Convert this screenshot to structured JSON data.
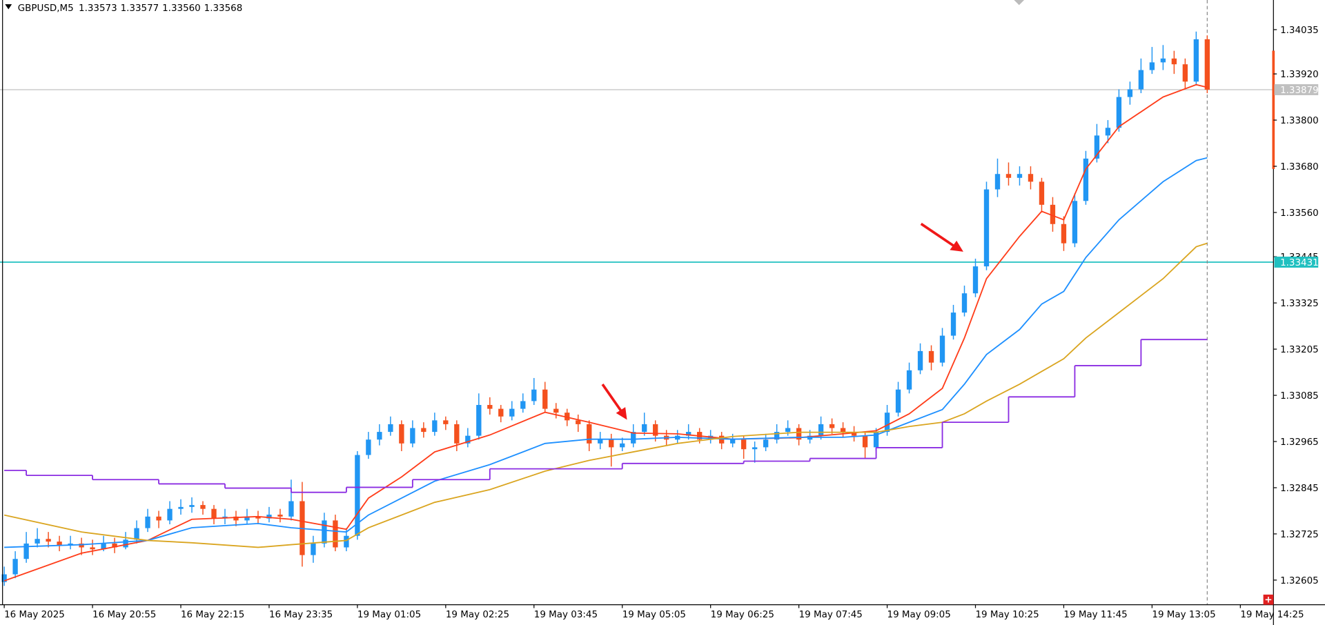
{
  "chart_data": {
    "type": "candlestick",
    "title": "GBPUSD,M5",
    "header_values": [
      "1.33573",
      "1.33577",
      "1.33560",
      "1.33568"
    ],
    "colors": {
      "up": "#2196f3",
      "down": "#f4511e"
    },
    "candles": [
      [
        1.326,
        1.3264,
        1.3259,
        1.3262
      ],
      [
        1.3262,
        1.3268,
        1.3261,
        1.3266
      ],
      [
        1.3266,
        1.3273,
        1.3265,
        1.327
      ],
      [
        1.327,
        1.3274,
        1.3269,
        1.32712
      ],
      [
        1.32712,
        1.3273,
        1.3269,
        1.32705
      ],
      [
        1.32705,
        1.3272,
        1.3268,
        1.32695
      ],
      [
        1.32695,
        1.3272,
        1.32685,
        1.327
      ],
      [
        1.327,
        1.32715,
        1.3267,
        1.3269
      ],
      [
        1.3269,
        1.3271,
        1.3267,
        1.32685
      ],
      [
        1.32685,
        1.3272,
        1.3268,
        1.327
      ],
      [
        1.327,
        1.32715,
        1.32675,
        1.3269
      ],
      [
        1.3269,
        1.3273,
        1.32685,
        1.3271
      ],
      [
        1.3271,
        1.3276,
        1.327,
        1.3274
      ],
      [
        1.3274,
        1.3279,
        1.3273,
        1.3277
      ],
      [
        1.3277,
        1.32785,
        1.3274,
        1.3276
      ],
      [
        1.3276,
        1.3281,
        1.3275,
        1.3279
      ],
      [
        1.3279,
        1.32815,
        1.32775,
        1.32795
      ],
      [
        1.32795,
        1.3282,
        1.3278,
        1.328
      ],
      [
        1.328,
        1.3281,
        1.32775,
        1.3279
      ],
      [
        1.3279,
        1.328,
        1.3275,
        1.32765
      ],
      [
        1.32765,
        1.3279,
        1.3275,
        1.3277
      ],
      [
        1.3277,
        1.32785,
        1.32745,
        1.3276
      ],
      [
        1.3276,
        1.3279,
        1.3275,
        1.3277
      ],
      [
        1.3277,
        1.32785,
        1.3275,
        1.32765
      ],
      [
        1.32765,
        1.32795,
        1.32755,
        1.32775
      ],
      [
        1.32775,
        1.3279,
        1.32755,
        1.3277
      ],
      [
        1.3277,
        1.32866,
        1.3276,
        1.3281
      ],
      [
        1.3281,
        1.3286,
        1.3264,
        1.3267
      ],
      [
        1.3267,
        1.3272,
        1.3265,
        1.327
      ],
      [
        1.327,
        1.3278,
        1.3269,
        1.3276
      ],
      [
        1.3276,
        1.32775,
        1.3268,
        1.3269
      ],
      [
        1.3269,
        1.3274,
        1.3268,
        1.3272
      ],
      [
        1.3272,
        1.3294,
        1.3271,
        1.3293
      ],
      [
        1.3293,
        1.3299,
        1.3292,
        1.3297
      ],
      [
        1.3297,
        1.3301,
        1.32955,
        1.3299
      ],
      [
        1.3299,
        1.3303,
        1.3298,
        1.3301
      ],
      [
        1.3301,
        1.3302,
        1.3294,
        1.3296
      ],
      [
        1.3296,
        1.3302,
        1.3295,
        1.33
      ],
      [
        1.33,
        1.33015,
        1.32975,
        1.3299
      ],
      [
        1.3299,
        1.3304,
        1.3298,
        1.3302
      ],
      [
        1.3302,
        1.3303,
        1.32995,
        1.3301
      ],
      [
        1.3301,
        1.3302,
        1.3294,
        1.3296
      ],
      [
        1.3296,
        1.33,
        1.3295,
        1.3298
      ],
      [
        1.3298,
        1.3309,
        1.3297,
        1.3306
      ],
      [
        1.3306,
        1.3308,
        1.33035,
        1.3305
      ],
      [
        1.3305,
        1.3306,
        1.33015,
        1.3303
      ],
      [
        1.3303,
        1.3307,
        1.3302,
        1.3305
      ],
      [
        1.3305,
        1.3309,
        1.3304,
        1.3307
      ],
      [
        1.3307,
        1.3313,
        1.3306,
        1.331
      ],
      [
        1.331,
        1.3312,
        1.3304,
        1.3305
      ],
      [
        1.3305,
        1.33065,
        1.33025,
        1.3304
      ],
      [
        1.3304,
        1.3305,
        1.33005,
        1.3302
      ],
      [
        1.3302,
        1.33035,
        1.3299,
        1.3301
      ],
      [
        1.3301,
        1.3302,
        1.3294,
        1.3296
      ],
      [
        1.3296,
        1.3299,
        1.32945,
        1.3297
      ],
      [
        1.3297,
        1.32985,
        1.329,
        1.3295
      ],
      [
        1.3295,
        1.32975,
        1.3294,
        1.3296
      ],
      [
        1.3296,
        1.3301,
        1.3295,
        1.3299
      ],
      [
        1.3299,
        1.3304,
        1.3298,
        1.3301
      ],
      [
        1.3301,
        1.3302,
        1.32965,
        1.3298
      ],
      [
        1.3298,
        1.32995,
        1.32955,
        1.3297
      ],
      [
        1.3297,
        1.32995,
        1.3296,
        1.3298
      ],
      [
        1.3298,
        1.3301,
        1.3297,
        1.3299
      ],
      [
        1.3299,
        1.33,
        1.3296,
        1.3297
      ],
      [
        1.3297,
        1.32995,
        1.3296,
        1.3298
      ],
      [
        1.3298,
        1.3299,
        1.32945,
        1.3296
      ],
      [
        1.3296,
        1.32985,
        1.3295,
        1.3297
      ],
      [
        1.3297,
        1.3298,
        1.3292,
        1.32945
      ],
      [
        1.32945,
        1.32965,
        1.3291,
        1.3295
      ],
      [
        1.3295,
        1.32985,
        1.3294,
        1.3297
      ],
      [
        1.3297,
        1.3301,
        1.3296,
        1.3299
      ],
      [
        1.3299,
        1.3302,
        1.3298,
        1.33
      ],
      [
        1.33,
        1.3301,
        1.32955,
        1.3297
      ],
      [
        1.3297,
        1.32995,
        1.3296,
        1.3298
      ],
      [
        1.3298,
        1.3303,
        1.3297,
        1.3301
      ],
      [
        1.3301,
        1.33025,
        1.32985,
        1.33
      ],
      [
        1.33,
        1.33015,
        1.32975,
        1.3299
      ],
      [
        1.3299,
        1.33005,
        1.32965,
        1.3298
      ],
      [
        1.3298,
        1.3299,
        1.3292,
        1.3295
      ],
      [
        1.3295,
        1.33,
        1.3294,
        1.3299
      ],
      [
        1.3299,
        1.3306,
        1.3298,
        1.3304
      ],
      [
        1.3304,
        1.3312,
        1.3303,
        1.331
      ],
      [
        1.331,
        1.3317,
        1.3309,
        1.3315
      ],
      [
        1.3315,
        1.3322,
        1.3314,
        1.332
      ],
      [
        1.332,
        1.33215,
        1.3315,
        1.3317
      ],
      [
        1.3317,
        1.3326,
        1.3316,
        1.3324
      ],
      [
        1.3324,
        1.3332,
        1.3323,
        1.333
      ],
      [
        1.333,
        1.3337,
        1.3329,
        1.3335
      ],
      [
        1.3335,
        1.3344,
        1.3334,
        1.3342
      ],
      [
        1.3342,
        1.3364,
        1.3341,
        1.3362
      ],
      [
        1.3362,
        1.337,
        1.336,
        1.3366
      ],
      [
        1.3366,
        1.3369,
        1.3363,
        1.3365
      ],
      [
        1.3365,
        1.3368,
        1.3363,
        1.3366
      ],
      [
        1.3366,
        1.3368,
        1.3362,
        1.3364
      ],
      [
        1.3364,
        1.3365,
        1.3356,
        1.3358
      ],
      [
        1.3358,
        1.336,
        1.3351,
        1.3353
      ],
      [
        1.3353,
        1.3355,
        1.3346,
        1.3348
      ],
      [
        1.3348,
        1.3361,
        1.3347,
        1.3359
      ],
      [
        1.3359,
        1.3372,
        1.3358,
        1.337
      ],
      [
        1.337,
        1.3379,
        1.3369,
        1.3376
      ],
      [
        1.3376,
        1.338,
        1.3374,
        1.3378
      ],
      [
        1.3378,
        1.3388,
        1.3377,
        1.3386
      ],
      [
        1.3386,
        1.339,
        1.3384,
        1.3388
      ],
      [
        1.3388,
        1.3396,
        1.3387,
        1.3393
      ],
      [
        1.3393,
        1.3399,
        1.3392,
        1.3395
      ],
      [
        1.3395,
        1.33995,
        1.3393,
        1.3396
      ],
      [
        1.3396,
        1.3398,
        1.3392,
        1.33945
      ],
      [
        1.33945,
        1.3396,
        1.3388,
        1.339
      ],
      [
        1.339,
        1.3403,
        1.3389,
        1.3401
      ],
      [
        1.3401,
        1.3402,
        1.3387,
        1.33879
      ]
    ],
    "overlays": [
      {
        "color": "#ff3d1a",
        "step": false,
        "x": [
          0,
          7,
          13,
          17,
          23,
          26,
          31,
          33,
          36,
          39,
          44,
          49,
          53,
          57,
          61,
          66,
          72,
          76,
          79,
          82,
          85,
          87,
          89,
          92,
          94,
          96,
          98,
          101,
          105,
          108,
          109
        ],
        "values": [
          1.32603,
          1.32675,
          1.32708,
          1.32763,
          1.3277,
          1.32763,
          1.32737,
          1.32818,
          1.32873,
          1.32938,
          1.32982,
          1.33041,
          1.33015,
          1.32987,
          1.32985,
          1.32971,
          1.32975,
          1.32985,
          1.32993,
          1.33037,
          1.33103,
          1.33234,
          1.33388,
          1.33498,
          1.33563,
          1.33541,
          1.33673,
          1.33783,
          1.3386,
          1.33892,
          1.33885
        ]
      },
      {
        "color": "#1e90ff",
        "step": false,
        "x": [
          0,
          7,
          13,
          17,
          23,
          26,
          31,
          33,
          36,
          39,
          44,
          49,
          53,
          57,
          61,
          66,
          72,
          76,
          79,
          82,
          85,
          87,
          89,
          92,
          94,
          96,
          98,
          101,
          105,
          108,
          109
        ],
        "values": [
          1.3269,
          1.32697,
          1.32708,
          1.32741,
          1.32752,
          1.32741,
          1.3273,
          1.32774,
          1.32818,
          1.32862,
          1.32905,
          1.3296,
          1.32971,
          1.32971,
          1.32976,
          1.32971,
          1.32976,
          1.32976,
          1.32982,
          1.33015,
          1.33048,
          1.33114,
          1.33191,
          1.33256,
          1.33322,
          1.33355,
          1.33443,
          1.33541,
          1.3364,
          1.33695,
          1.33702
        ]
      },
      {
        "color": "#daa520",
        "step": false,
        "x": [
          0,
          7,
          13,
          17,
          23,
          26,
          31,
          33,
          36,
          39,
          44,
          49,
          53,
          57,
          61,
          66,
          72,
          76,
          79,
          82,
          85,
          87,
          89,
          92,
          94,
          96,
          98,
          101,
          105,
          108,
          109
        ],
        "values": [
          1.32774,
          1.3273,
          1.32708,
          1.32702,
          1.3269,
          1.32697,
          1.32708,
          1.32741,
          1.32774,
          1.32807,
          1.3284,
          1.32888,
          1.32916,
          1.32938,
          1.3296,
          1.32978,
          1.32989,
          1.32989,
          1.32989,
          1.33004,
          1.33015,
          1.33037,
          1.3307,
          1.33114,
          1.33147,
          1.3318,
          1.33234,
          1.333,
          1.33388,
          1.33471,
          1.3348
        ]
      },
      {
        "color": "#8a2be2",
        "step": true,
        "x": [
          0,
          2,
          8,
          14,
          20,
          26,
          31,
          37,
          44,
          56,
          67,
          73,
          79,
          85,
          91,
          97,
          103
        ],
        "values": [
          1.3289,
          1.32877,
          1.32866,
          1.32855,
          1.32844,
          1.32833,
          1.32846,
          1.32866,
          1.32894,
          1.32908,
          1.32914,
          1.32921,
          1.32949,
          1.33015,
          1.33081,
          1.33162,
          1.3323
        ]
      }
    ],
    "hlines": [
      {
        "value": 1.33879,
        "color": "#c0c0c0"
      },
      {
        "value": 1.33431,
        "color": "#20c0c0"
      }
    ],
    "xlim": [
      -0.383,
      115.0
    ],
    "xticks": [
      {
        "value": 0,
        "label": "16 May 2025"
      },
      {
        "value": 8,
        "label": "16 May 20:55"
      },
      {
        "value": 16,
        "label": "16 May 22:15"
      },
      {
        "value": 24,
        "label": "16 May 23:35"
      },
      {
        "value": 32,
        "label": "19 May 01:05"
      },
      {
        "value": 40,
        "label": "19 May 02:25"
      },
      {
        "value": 48,
        "label": "19 May 03:45"
      },
      {
        "value": 56,
        "label": "19 May 05:05"
      },
      {
        "value": 64,
        "label": "19 May 06:25"
      },
      {
        "value": 72,
        "label": "19 May 07:45"
      },
      {
        "value": 80,
        "label": "19 May 09:05"
      },
      {
        "value": 88,
        "label": "19 May 10:25"
      },
      {
        "value": 96,
        "label": "19 May 11:45"
      },
      {
        "value": 104,
        "label": "19 May 13:05"
      },
      {
        "value": 112,
        "label": "19 May 14:25"
      }
    ],
    "ylim": [
      1.32541,
      1.34112
    ],
    "yticks": [
      1.32605,
      1.32725,
      1.32845,
      1.32965,
      1.33085,
      1.33205,
      1.33325,
      1.33445,
      {
        "value": 1.3356,
        "label": "1.33560"
      },
      {
        "value": 1.3368,
        "label": "1.33680"
      },
      {
        "value": 1.338,
        "label": "1.33800"
      },
      {
        "value": 1.3392,
        "label": "1.33920"
      },
      1.34035
    ]
  }
}
